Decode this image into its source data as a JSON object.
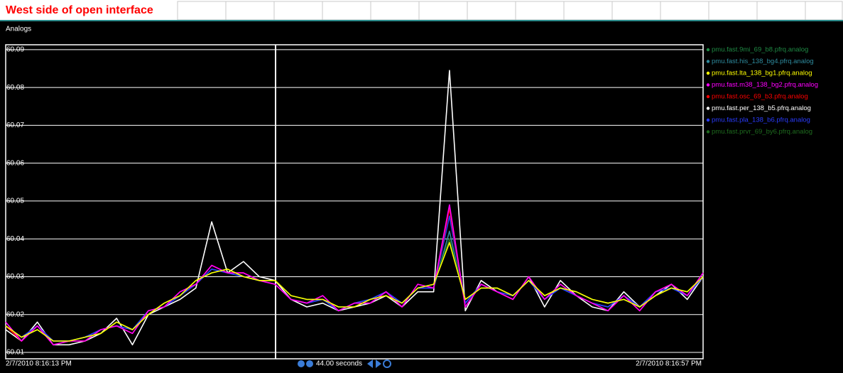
{
  "header": {
    "title": "West side of open interface"
  },
  "panel_label": "Analogs",
  "toolbar": {
    "span": "44.00 seconds"
  },
  "chart_data": {
    "type": "line",
    "categories": [
      "2/7/2010 8:16:13 PM",
      null,
      null,
      null,
      null,
      null,
      null,
      null,
      null,
      null,
      null,
      null,
      null,
      null,
      null,
      null,
      null,
      null,
      null,
      null,
      null,
      null,
      null,
      null,
      null,
      null,
      null,
      null,
      null,
      null,
      null,
      null,
      null,
      null,
      null,
      null,
      null,
      null,
      null,
      null,
      null,
      null,
      null,
      null,
      "2/7/2010 8:16:57 PM"
    ],
    "ylim": [
      60.0083,
      60.0913
    ],
    "yticks": [
      60.01,
      60.02,
      60.03,
      60.04,
      60.05,
      60.06,
      60.07,
      60.08,
      60.09
    ],
    "grid": true,
    "legend": "right",
    "series": [
      {
        "name": "pmu.fast.9mi_69_b8.pfrq.analog",
        "color": "#1f8a44",
        "values": [
          60.017,
          60.014,
          60.016,
          60.013,
          60.013,
          60.014,
          60.015,
          60.018,
          60.016,
          60.02,
          60.023,
          60.025,
          60.029,
          60.031,
          60.032,
          60.03,
          60.029,
          60.029,
          60.025,
          60.024,
          60.024,
          60.022,
          60.022,
          60.024,
          60.025,
          60.023,
          60.027,
          60.028,
          60.04,
          60.024,
          60.027,
          60.027,
          60.025,
          60.029,
          60.025,
          60.027,
          60.026,
          60.024,
          60.023,
          60.024,
          60.022,
          60.025,
          60.027,
          60.026,
          60.03
        ]
      },
      {
        "name": "pmu.fast.his_138_bg4.pfrq.analog",
        "color": "#2e8b9e",
        "values": [
          60.017,
          60.014,
          60.016,
          60.013,
          60.013,
          60.014,
          60.016,
          60.017,
          60.016,
          60.021,
          60.022,
          60.025,
          60.028,
          60.032,
          60.031,
          60.03,
          60.029,
          60.028,
          60.024,
          60.023,
          60.024,
          60.021,
          60.023,
          60.024,
          60.026,
          60.023,
          60.027,
          60.027,
          60.042,
          60.023,
          60.028,
          60.026,
          60.025,
          60.029,
          60.024,
          60.027,
          60.025,
          60.023,
          60.022,
          60.025,
          60.022,
          60.026,
          60.027,
          60.025,
          60.03
        ]
      },
      {
        "name": "pmu.fast.lta_138_bg1.pfrq.analog",
        "color": "#ffff00",
        "values": [
          60.017,
          60.014,
          60.016,
          60.013,
          60.013,
          60.014,
          60.015,
          60.018,
          60.016,
          60.02,
          60.023,
          60.025,
          60.029,
          60.031,
          60.032,
          60.03,
          60.029,
          60.029,
          60.025,
          60.024,
          60.024,
          60.022,
          60.022,
          60.024,
          60.025,
          60.023,
          60.027,
          60.028,
          60.039,
          60.024,
          60.027,
          60.027,
          60.025,
          60.029,
          60.025,
          60.027,
          60.026,
          60.024,
          60.023,
          60.024,
          60.022,
          60.025,
          60.027,
          60.026,
          60.03
        ]
      },
      {
        "name": "pmu.fast.m38_138_bg2.pfrq.analog",
        "color": "#ff00ff",
        "values": [
          60.018,
          60.013,
          60.017,
          60.012,
          60.013,
          60.013,
          60.016,
          60.017,
          60.015,
          60.021,
          60.022,
          60.026,
          60.028,
          60.033,
          60.031,
          60.031,
          60.029,
          60.028,
          60.024,
          60.023,
          60.025,
          60.021,
          60.023,
          60.023,
          60.026,
          60.022,
          60.028,
          60.027,
          60.049,
          60.022,
          60.028,
          60.026,
          60.024,
          60.03,
          60.024,
          60.028,
          60.025,
          60.023,
          60.021,
          60.025,
          60.021,
          60.026,
          60.028,
          60.025,
          60.031
        ]
      },
      {
        "name": "pmu.fast.osc_69_b3.pfrq.analog",
        "color": "#ff0000",
        "values": [
          60.017,
          60.013,
          60.017,
          60.012,
          60.013,
          60.013,
          60.016,
          60.017,
          60.015,
          60.021,
          60.022,
          60.026,
          60.028,
          60.033,
          60.031,
          60.031,
          60.029,
          60.028,
          60.024,
          60.023,
          60.025,
          60.021,
          60.023,
          60.023,
          60.026,
          60.022,
          60.028,
          60.027,
          60.048,
          60.022,
          60.028,
          60.026,
          60.024,
          60.03,
          60.024,
          60.028,
          60.025,
          60.023,
          60.021,
          60.025,
          60.021,
          60.026,
          60.028,
          60.025,
          60.031
        ]
      },
      {
        "name": "pmu.fast.per_138_b5.pfrq.analog",
        "color": "#ffffff",
        "values": [
          60.016,
          60.013,
          60.018,
          60.012,
          60.012,
          60.013,
          60.015,
          60.019,
          60.012,
          60.02,
          60.022,
          60.024,
          60.027,
          60.0445,
          60.031,
          60.034,
          60.03,
          60.029,
          60.024,
          60.022,
          60.023,
          60.021,
          60.022,
          60.023,
          60.025,
          60.022,
          60.026,
          60.026,
          60.0845,
          60.021,
          60.029,
          60.026,
          60.024,
          60.03,
          60.022,
          60.029,
          60.025,
          60.022,
          60.021,
          60.026,
          60.022,
          60.025,
          60.028,
          60.024,
          60.03
        ]
      },
      {
        "name": "pmu.fast.pla_138_b6.pfrq.analog",
        "color": "#2a3cff",
        "values": [
          60.017,
          60.014,
          60.017,
          60.013,
          60.013,
          60.014,
          60.016,
          60.017,
          60.016,
          60.021,
          60.022,
          60.025,
          60.028,
          60.032,
          60.031,
          60.03,
          60.029,
          60.028,
          60.024,
          60.023,
          60.024,
          60.021,
          60.023,
          60.024,
          60.026,
          60.023,
          60.027,
          60.027,
          60.046,
          60.023,
          60.028,
          60.026,
          60.025,
          60.029,
          60.024,
          60.027,
          60.025,
          60.023,
          60.022,
          60.025,
          60.022,
          60.026,
          60.027,
          60.025,
          60.03
        ]
      },
      {
        "name": "pmu.fast.prvr_69_by6.pfrq.analog",
        "color": "#1e6b1e",
        "values": [
          60.017,
          60.014,
          60.016,
          60.013,
          60.013,
          60.014,
          60.015,
          60.018,
          60.016,
          60.02,
          60.023,
          60.025,
          60.029,
          60.031,
          60.032,
          60.03,
          60.029,
          60.029,
          60.025,
          60.024,
          60.024,
          60.022,
          60.022,
          60.024,
          60.025,
          60.023,
          60.027,
          60.028,
          60.04,
          60.024,
          60.027,
          60.027,
          60.025,
          60.029,
          60.025,
          60.027,
          60.026,
          60.024,
          60.023,
          60.024,
          60.022,
          60.025,
          60.027,
          60.026,
          60.03
        ]
      }
    ]
  }
}
